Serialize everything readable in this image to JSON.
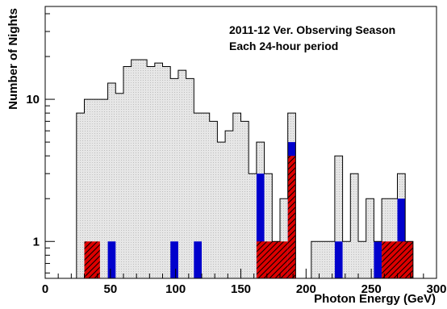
{
  "chart_data": {
    "type": "bar",
    "xlabel": "Photon Energy (GeV)",
    "ylabel": "Number of Nights",
    "annotations": [
      "2011-12 Ver. Observing Season",
      "Each 24-hour period"
    ],
    "x_range": [
      0,
      300
    ],
    "y_range": [
      0.55,
      45
    ],
    "y_scale": "log",
    "bin_width": 6,
    "x_ticks": [
      0,
      50,
      100,
      150,
      200,
      250,
      300
    ],
    "x_tick_labels": [
      "0",
      "50",
      "100",
      "150",
      "200",
      "250",
      "300"
    ],
    "y_ticks": [
      1,
      10
    ],
    "y_tick_labels": [
      "1",
      "10"
    ],
    "grid": false,
    "legend": "none",
    "series": [
      {
        "color": "#e3e3e3",
        "hatch": "dots",
        "bars": [
          {
            "x0": 24,
            "x1": 30,
            "y": 8
          },
          {
            "x0": 30,
            "x1": 36,
            "y": 10
          },
          {
            "x0": 36,
            "x1": 42,
            "y": 10
          },
          {
            "x0": 42,
            "x1": 48,
            "y": 10
          },
          {
            "x0": 48,
            "x1": 54,
            "y": 13
          },
          {
            "x0": 54,
            "x1": 60,
            "y": 11
          },
          {
            "x0": 60,
            "x1": 66,
            "y": 17
          },
          {
            "x0": 66,
            "x1": 72,
            "y": 19
          },
          {
            "x0": 72,
            "x1": 78,
            "y": 19
          },
          {
            "x0": 78,
            "x1": 84,
            "y": 17
          },
          {
            "x0": 84,
            "x1": 90,
            "y": 18
          },
          {
            "x0": 90,
            "x1": 96,
            "y": 17
          },
          {
            "x0": 96,
            "x1": 102,
            "y": 14
          },
          {
            "x0": 102,
            "x1": 108,
            "y": 16
          },
          {
            "x0": 108,
            "x1": 114,
            "y": 14
          },
          {
            "x0": 114,
            "x1": 120,
            "y": 8
          },
          {
            "x0": 120,
            "x1": 126,
            "y": 8
          },
          {
            "x0": 126,
            "x1": 132,
            "y": 7
          },
          {
            "x0": 132,
            "x1": 138,
            "y": 5
          },
          {
            "x0": 138,
            "x1": 144,
            "y": 6
          },
          {
            "x0": 144,
            "x1": 150,
            "y": 8
          },
          {
            "x0": 150,
            "x1": 156,
            "y": 7
          },
          {
            "x0": 156,
            "x1": 162,
            "y": 3
          },
          {
            "x0": 162,
            "x1": 168,
            "y": 5
          },
          {
            "x0": 168,
            "x1": 174,
            "y": 3
          },
          {
            "x0": 174,
            "x1": 180,
            "y": 1
          },
          {
            "x0": 180,
            "x1": 186,
            "y": 2
          },
          {
            "x0": 186,
            "x1": 192,
            "y": 8
          },
          {
            "x0": 204,
            "x1": 222,
            "y": 1
          },
          {
            "x0": 222,
            "x1": 228,
            "y": 4
          },
          {
            "x0": 228,
            "x1": 234,
            "y": 1
          },
          {
            "x0": 234,
            "x1": 240,
            "y": 3
          },
          {
            "x0": 240,
            "x1": 246,
            "y": 1
          },
          {
            "x0": 246,
            "x1": 252,
            "y": 2
          },
          {
            "x0": 252,
            "x1": 258,
            "y": 1
          },
          {
            "x0": 258,
            "x1": 270,
            "y": 2
          },
          {
            "x0": 270,
            "x1": 276,
            "y": 3
          },
          {
            "x0": 276,
            "x1": 282,
            "y": 1
          }
        ]
      },
      {
        "color": "#0000cc",
        "hatch": "none",
        "bars": [
          {
            "x0": 48,
            "x1": 54,
            "y": 1
          },
          {
            "x0": 96,
            "x1": 102,
            "y": 1
          },
          {
            "x0": 114,
            "x1": 120,
            "y": 1
          },
          {
            "x0": 162,
            "x1": 168,
            "y": 3
          },
          {
            "x0": 186,
            "x1": 192,
            "y": 5
          },
          {
            "x0": 222,
            "x1": 228,
            "y": 1
          },
          {
            "x0": 252,
            "x1": 258,
            "y": 1
          },
          {
            "x0": 270,
            "x1": 276,
            "y": 2
          }
        ]
      },
      {
        "color": "#dd0000",
        "hatch": "diagonal",
        "bars": [
          {
            "x0": 30,
            "x1": 42,
            "y": 1
          },
          {
            "x0": 162,
            "x1": 186,
            "y": 1
          },
          {
            "x0": 186,
            "x1": 192,
            "y": 4
          },
          {
            "x0": 258,
            "x1": 282,
            "y": 1
          }
        ]
      }
    ]
  }
}
